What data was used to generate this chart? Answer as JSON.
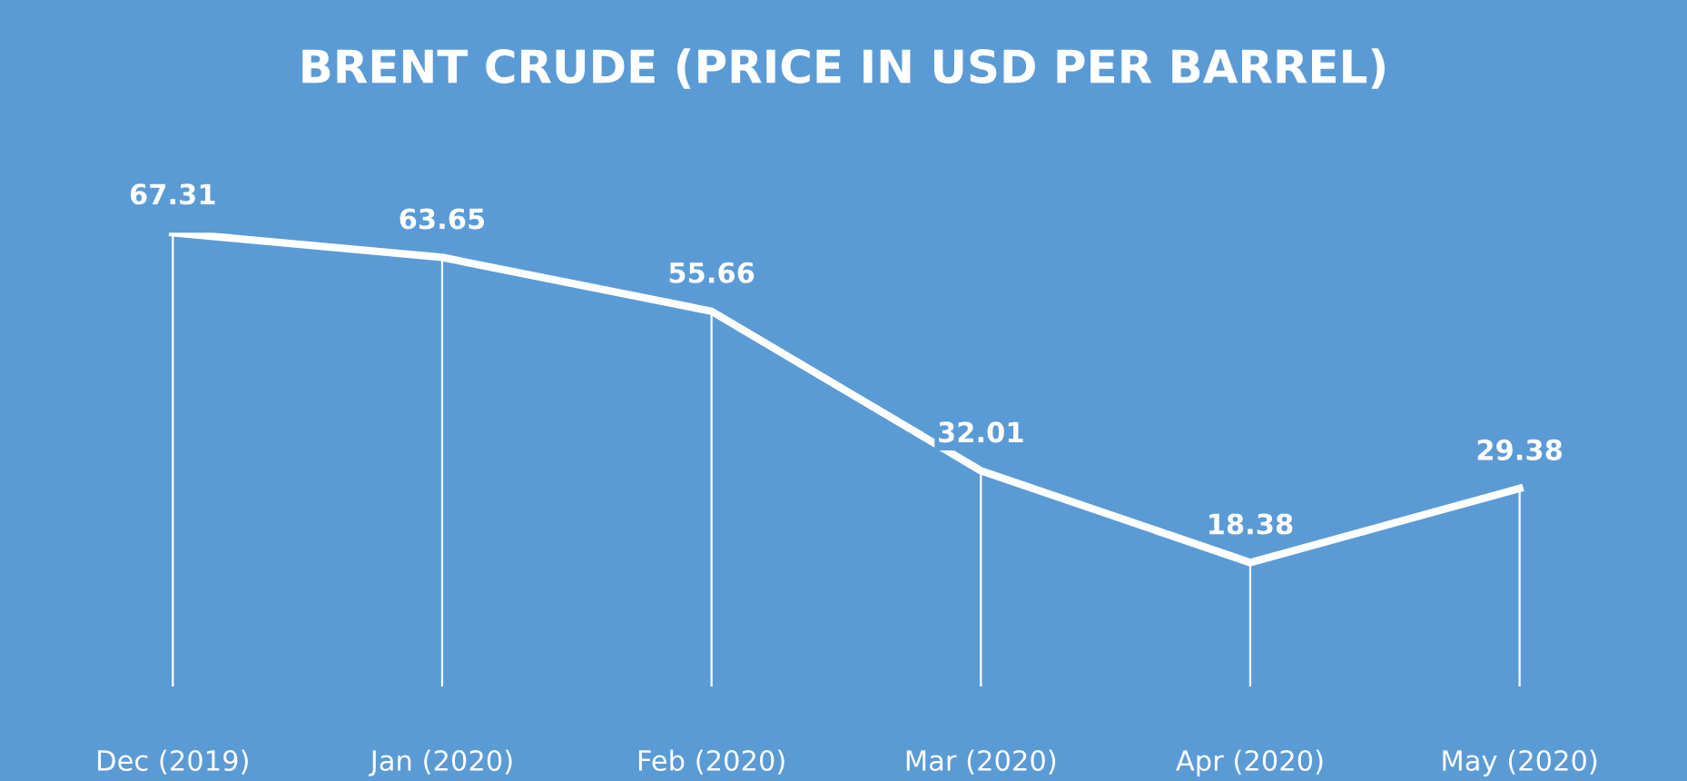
{
  "chart_data": {
    "type": "line",
    "title": "BRENT CRUDE (PRICE IN USD PER BARREL)",
    "categories": [
      "Dec (2019)",
      "Jan (2020)",
      "Feb (2020)",
      "Mar (2020)",
      "Apr (2020)",
      "May (2020)"
    ],
    "series": [
      {
        "color": "#ffffff",
        "values": [
          67.31,
          63.65,
          55.66,
          32.01,
          18.38,
          29.38
        ]
      }
    ],
    "tick_labels": "x",
    "data_labels": true,
    "grid": "x",
    "line_style": "solid"
  }
}
